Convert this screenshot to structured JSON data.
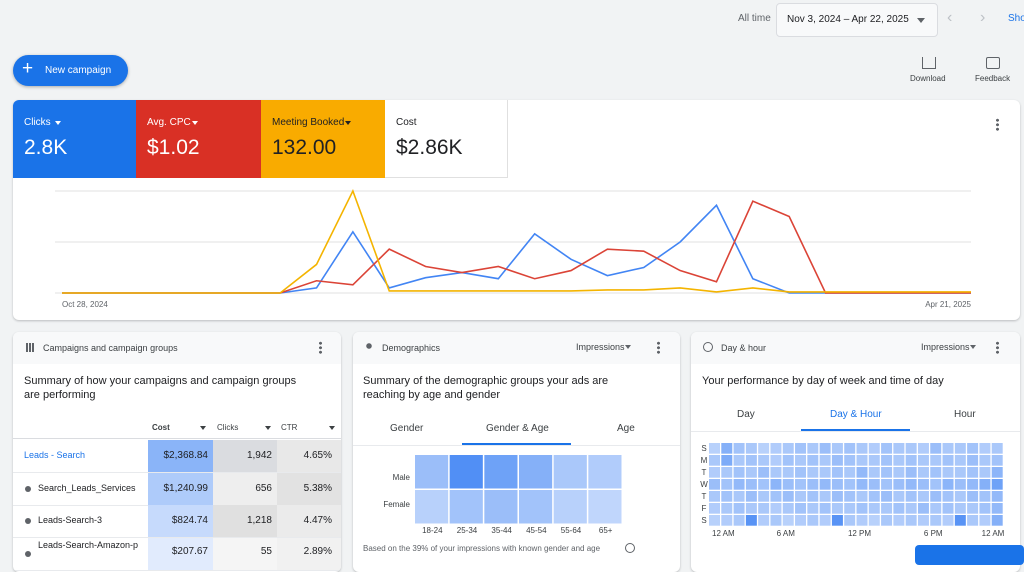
{
  "header": {
    "range_label": "All time",
    "date_range": "Nov 3, 2024 – Apr 22, 2025",
    "show_link": "Sho"
  },
  "actions": {
    "new_campaign": "New campaign",
    "download": "Download",
    "feedback": "Feedback"
  },
  "scorecards": [
    {
      "label": "Clicks",
      "value": "2.8K",
      "color": "#1a73e8"
    },
    {
      "label": "Avg. CPC",
      "value": "$1.02",
      "color": "#d93025"
    },
    {
      "label": "Meeting Booked",
      "value": "132.00",
      "color": "#f9ab00"
    },
    {
      "label": "Cost",
      "value": "$2.86K",
      "color": "#ffffff"
    }
  ],
  "overview_chart": {
    "x_start_label": "Oct 28, 2024",
    "x_end_label": "Apr 21, 2025",
    "ylim": [
      0,
      100
    ],
    "series": [
      {
        "color": "#4285f4",
        "values": [
          0,
          0,
          0,
          0,
          0,
          0,
          0,
          5,
          60,
          5,
          15,
          20,
          14,
          58,
          33,
          17,
          25,
          50,
          86,
          14,
          0,
          0,
          0,
          0,
          0,
          0
        ]
      },
      {
        "color": "#db4437",
        "values": [
          0,
          0,
          0,
          0,
          0,
          0,
          0,
          12,
          8,
          43,
          26,
          20,
          26,
          14,
          22,
          43,
          41,
          22,
          11,
          90,
          75,
          0,
          0,
          0,
          0,
          0
        ]
      },
      {
        "color": "#f4b400",
        "values": [
          0,
          0,
          0,
          0,
          0,
          0,
          0,
          28,
          100,
          2,
          2,
          2,
          2,
          2,
          2,
          3,
          3,
          5,
          1,
          5,
          1,
          1,
          1,
          1,
          1,
          1
        ]
      }
    ]
  },
  "campaigns": {
    "title": "Campaigns and campaign groups",
    "summary": "Summary of how your campaigns and campaign groups are performing",
    "columns": [
      "Cost",
      "Clicks",
      "CTR"
    ],
    "rows": [
      [
        "Leads - Search",
        "$2,368.84",
        "1,942",
        "4.65%"
      ],
      [
        "Search_Leads_Services",
        "$1,240.99",
        "656",
        "5.38%"
      ],
      [
        "Leads-Search-3",
        "$824.74",
        "1,218",
        "4.47%"
      ],
      [
        "Leads-Search-Amazon-p",
        "$207.67",
        "55",
        "2.89%"
      ]
    ]
  },
  "demographics": {
    "title": "Demographics",
    "metric": "Impressions",
    "summary": "Summary of the demographic groups your ads are reaching by age and gender",
    "tabs": [
      "Gender",
      "Gender & Age",
      "Age"
    ],
    "heatmap": {
      "columns": [
        "18-24",
        "25-34",
        "35-44",
        "45-54",
        "55-64",
        "65+"
      ],
      "rows": [
        {
          "name": "Male",
          "values": [
            40,
            90,
            70,
            55,
            30,
            25
          ]
        },
        {
          "name": "Female",
          "values": [
            20,
            35,
            40,
            35,
            20,
            15
          ]
        }
      ]
    },
    "footnote": "Based on the 39% of your impressions with known gender and age"
  },
  "day_hour": {
    "title": "Day & hour",
    "metric": "Impressions",
    "summary": "Your performance by day of week and time of day",
    "tabs": [
      "Day",
      "Day & Hour",
      "Hour"
    ],
    "heatmap": {
      "x_labels": [
        "12 AM",
        "6 AM",
        "12 PM",
        "6 PM",
        "12 AM"
      ],
      "rows": [
        {
          "name": "S",
          "values": [
            20,
            55,
            35,
            30,
            20,
            25,
            30,
            35,
            30,
            40,
            30,
            35,
            30,
            25,
            35,
            30,
            30,
            25,
            40,
            30,
            30,
            35,
            25,
            30
          ]
        },
        {
          "name": "M",
          "values": [
            30,
            60,
            30,
            35,
            30,
            25,
            35,
            30,
            35,
            30,
            40,
            35,
            30,
            30,
            35,
            30,
            35,
            30,
            30,
            35,
            30,
            40,
            30,
            35
          ]
        },
        {
          "name": "T",
          "values": [
            25,
            30,
            35,
            30,
            40,
            30,
            30,
            35,
            30,
            30,
            35,
            30,
            45,
            30,
            35,
            30,
            40,
            30,
            35,
            30,
            30,
            35,
            30,
            50
          ]
        },
        {
          "name": "W",
          "values": [
            40,
            35,
            45,
            40,
            35,
            50,
            40,
            35,
            40,
            45,
            40,
            35,
            45,
            40,
            35,
            40,
            45,
            40,
            35,
            50,
            40,
            45,
            55,
            70
          ]
        },
        {
          "name": "T",
          "values": [
            30,
            35,
            30,
            40,
            30,
            35,
            40,
            30,
            35,
            30,
            40,
            35,
            30,
            35,
            40,
            30,
            35,
            30,
            40,
            35,
            30,
            40,
            35,
            45
          ]
        },
        {
          "name": "F",
          "values": [
            25,
            30,
            35,
            30,
            30,
            25,
            30,
            35,
            30,
            35,
            30,
            30,
            35,
            30,
            30,
            35,
            30,
            40,
            30,
            35,
            30,
            30,
            35,
            45
          ]
        },
        {
          "name": "S",
          "values": [
            20,
            25,
            30,
            85,
            25,
            30,
            20,
            25,
            30,
            25,
            85,
            30,
            25,
            20,
            30,
            25,
            30,
            25,
            30,
            25,
            85,
            30,
            25,
            55
          ]
        }
      ]
    }
  }
}
